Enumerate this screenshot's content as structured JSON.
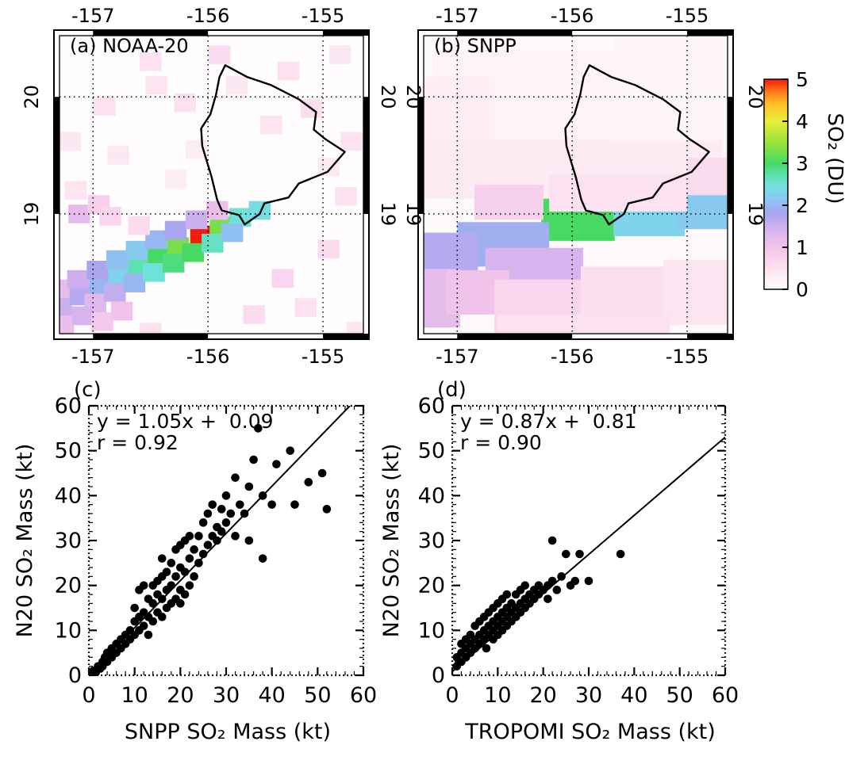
{
  "page": {
    "background": "#ffffff"
  },
  "colorbar": {
    "title": "SO₂ (DU)",
    "min": 0,
    "max": 5,
    "ticks": [
      0,
      1,
      2,
      3,
      4,
      5
    ],
    "stops": [
      [
        0.0,
        "#ffffff"
      ],
      [
        0.3,
        "#fdeef4"
      ],
      [
        0.6,
        "#fbdcee"
      ],
      [
        1.0,
        "#f2c3ea"
      ],
      [
        1.4,
        "#d8b4ee"
      ],
      [
        1.8,
        "#a9a5ef"
      ],
      [
        2.15,
        "#8cc5f1"
      ],
      [
        2.45,
        "#72e2e2"
      ],
      [
        2.75,
        "#5ce0a8"
      ],
      [
        3.0,
        "#47d963"
      ],
      [
        3.5,
        "#9ae23b"
      ],
      [
        4.0,
        "#e9ee38"
      ],
      [
        4.4,
        "#ffc22a"
      ],
      [
        4.7,
        "#ff7a18"
      ],
      [
        5.0,
        "#f71b0e"
      ]
    ]
  },
  "panels": {
    "a": {
      "label": "(a) NOAA-20"
    },
    "b": {
      "label": "(b) SNPP"
    },
    "c": {
      "label": "(c)",
      "fit_text": "y = 1.05x +  0.09",
      "r_text": "r = 0.92",
      "xlabel": "SNPP SO₂ Mass (kt)",
      "ylabel": "N20 SO₂ Mass (kt)"
    },
    "d": {
      "label": "(d)",
      "fit_text": "y = 0.87x +  0.81",
      "r_text": "r = 0.90",
      "xlabel": "TROPOMI SO₂ Mass (kt)",
      "ylabel": "N20 SO₂ Mass (kt)"
    }
  },
  "island_outline": [
    [
      -155.85,
      20.27
    ],
    [
      -155.66,
      20.17
    ],
    [
      -155.45,
      20.1
    ],
    [
      -155.21,
      19.98
    ],
    [
      -155.06,
      19.87
    ],
    [
      -155.08,
      19.72
    ],
    [
      -154.98,
      19.64
    ],
    [
      -154.81,
      19.53
    ],
    [
      -154.96,
      19.36
    ],
    [
      -155.21,
      19.26
    ],
    [
      -155.3,
      19.14
    ],
    [
      -155.51,
      19.09
    ],
    [
      -155.55,
      19.0
    ],
    [
      -155.68,
      18.91
    ],
    [
      -155.73,
      18.99
    ],
    [
      -155.88,
      19.03
    ],
    [
      -155.92,
      19.12
    ],
    [
      -155.97,
      19.32
    ],
    [
      -156.05,
      19.58
    ],
    [
      -156.06,
      19.73
    ],
    [
      -155.98,
      19.85
    ],
    [
      -155.93,
      20.02
    ],
    [
      -155.9,
      20.17
    ],
    [
      -155.85,
      20.27
    ]
  ],
  "chart_data": [
    {
      "id": "a",
      "type": "heatmap",
      "title": "(a) NOAA-20",
      "value_units": "SO₂ (DU)",
      "xlim": [
        -157.34,
        -154.6
      ],
      "ylim": [
        17.93,
        20.57
      ],
      "x_ticks": [
        -157,
        -156,
        -155
      ],
      "y_ticks": [
        19,
        20
      ],
      "frame_black_x": [
        [
          -157,
          -156
        ],
        [
          -155,
          -154.6
        ]
      ],
      "frame_black_y": [
        [
          19,
          20
        ]
      ],
      "background_value": 0.04,
      "cell_size": [
        0.19,
        0.16
      ],
      "cells": [
        [
          -157.28,
          18.21,
          1.5
        ],
        [
          -157.11,
          18.3,
          1.7
        ],
        [
          -156.94,
          18.38,
          2.0
        ],
        [
          -156.77,
          18.47,
          2.3
        ],
        [
          -156.6,
          18.55,
          2.7
        ],
        [
          -156.43,
          18.64,
          3.0
        ],
        [
          -156.26,
          18.72,
          3.3
        ],
        [
          -156.06,
          18.82,
          5.0
        ],
        [
          -155.89,
          18.9,
          3.3
        ],
        [
          -155.72,
          18.97,
          2.5
        ],
        [
          -155.55,
          19.03,
          2.4
        ],
        [
          -157.3,
          18.36,
          1.2
        ],
        [
          -157.13,
          18.44,
          1.5
        ],
        [
          -156.96,
          18.52,
          1.8
        ],
        [
          -156.79,
          18.61,
          2.1
        ],
        [
          -156.62,
          18.69,
          2.2
        ],
        [
          -156.45,
          18.78,
          2.0
        ],
        [
          -156.28,
          18.86,
          1.8
        ],
        [
          -156.1,
          18.95,
          1.5
        ],
        [
          -155.92,
          19.03,
          1.1
        ],
        [
          -156.98,
          18.24,
          1.3
        ],
        [
          -156.81,
          18.33,
          1.6
        ],
        [
          -156.64,
          18.41,
          2.0
        ],
        [
          -156.47,
          18.5,
          2.5
        ],
        [
          -156.3,
          18.58,
          2.9
        ],
        [
          -156.13,
          18.67,
          3.0
        ],
        [
          -155.96,
          18.75,
          2.6
        ],
        [
          -155.79,
          18.84,
          2.1
        ],
        [
          -157.26,
          18.05,
          1.1
        ],
        [
          -157.09,
          18.13,
          1.4
        ],
        [
          -156.92,
          18.08,
          0.9
        ],
        [
          -156.75,
          18.17,
          1.0
        ],
        [
          -157.12,
          19.0,
          1.2
        ],
        [
          -156.95,
          19.08,
          0.8
        ],
        [
          -156.85,
          18.98,
          0.7
        ],
        [
          -156.6,
          18.9,
          0.6
        ],
        [
          -156.5,
          20.3,
          0.5
        ],
        [
          -155.9,
          20.36,
          0.6
        ],
        [
          -155.3,
          20.22,
          0.5
        ],
        [
          -154.85,
          20.36,
          0.4
        ],
        [
          -156.9,
          19.92,
          0.5
        ],
        [
          -155.1,
          19.9,
          0.55
        ],
        [
          -154.75,
          19.62,
          0.5
        ],
        [
          -156.78,
          19.5,
          0.4
        ],
        [
          -157.15,
          19.2,
          0.45
        ],
        [
          -154.8,
          19.15,
          0.5
        ],
        [
          -154.95,
          18.7,
          0.6
        ],
        [
          -155.35,
          18.45,
          0.7
        ],
        [
          -155.15,
          18.2,
          0.5
        ],
        [
          -155.6,
          18.14,
          0.6
        ],
        [
          -156.5,
          17.99,
          0.5
        ],
        [
          -154.7,
          18.0,
          0.4
        ],
        [
          -157.2,
          19.62,
          0.4
        ],
        [
          -155.45,
          19.76,
          0.45
        ],
        [
          -156.28,
          19.3,
          0.3
        ],
        [
          -154.95,
          19.4,
          0.35
        ],
        [
          -156.1,
          19.55,
          0.3
        ],
        [
          -156.45,
          20.1,
          0.45
        ],
        [
          -156.2,
          19.95,
          0.5
        ],
        [
          -155.75,
          20.1,
          0.4
        ]
      ]
    },
    {
      "id": "b",
      "type": "heatmap",
      "title": "(b) SNPP",
      "value_units": "SO₂ (DU)",
      "xlim": [
        -157.34,
        -154.6
      ],
      "ylim": [
        17.93,
        20.57
      ],
      "x_ticks": [
        -157,
        -156,
        -155
      ],
      "y_ticks": [
        19,
        20
      ],
      "frame_black_x": [
        [
          -157,
          -156
        ],
        [
          -155,
          -154.6
        ]
      ],
      "frame_black_y": [
        [
          19,
          20
        ]
      ],
      "background_value": 0.08,
      "cell_size": [
        0.5,
        0.4
      ],
      "cells": [
        [
          -156.3,
          19.9,
          1.8,
          1.0,
          0.22
        ],
        [
          -155.0,
          19.95,
          1.3,
          1.1,
          0.18
        ],
        [
          -157.05,
          19.75,
          0.75,
          0.85,
          0.28
        ],
        [
          -156.0,
          19.38,
          2.6,
          0.5,
          0.35
        ],
        [
          -155.95,
          18.95,
          0.64,
          0.36,
          3.0
        ],
        [
          -155.33,
          18.98,
          0.62,
          0.34,
          2.3
        ],
        [
          -154.82,
          19.03,
          0.55,
          0.32,
          2.2
        ],
        [
          -156.6,
          18.74,
          0.8,
          0.38,
          1.9
        ],
        [
          -157.12,
          18.63,
          0.6,
          0.42,
          1.7
        ],
        [
          -156.33,
          18.55,
          0.85,
          0.32,
          1.4
        ],
        [
          -157.25,
          18.28,
          0.55,
          0.5,
          1.2
        ],
        [
          -156.82,
          18.33,
          0.55,
          0.38,
          1.0
        ],
        [
          -156.2,
          18.2,
          0.95,
          0.48,
          0.7
        ],
        [
          -155.5,
          18.3,
          0.85,
          0.5,
          0.55
        ],
        [
          -154.88,
          18.33,
          0.65,
          0.55,
          0.45
        ],
        [
          -155.9,
          17.99,
          1.5,
          0.3,
          0.5
        ],
        [
          -154.72,
          19.32,
          0.55,
          0.32,
          0.6
        ],
        [
          -155.6,
          19.18,
          1.2,
          0.32,
          0.5
        ],
        [
          -156.55,
          19.1,
          0.6,
          0.3,
          0.8
        ]
      ]
    },
    {
      "id": "c",
      "type": "scatter",
      "xlabel": "SNPP SO₂ Mass (kt)",
      "ylabel": "N20 SO₂ Mass (kt)",
      "xlim": [
        0,
        60
      ],
      "ylim": [
        0,
        60
      ],
      "x_ticks": [
        0,
        10,
        20,
        30,
        40,
        50,
        60
      ],
      "y_ticks": [
        0,
        10,
        20,
        30,
        40,
        50,
        60
      ],
      "minor_step": 2,
      "fit": {
        "slope": 1.05,
        "intercept": 0.09,
        "r": 0.92
      },
      "points": [
        [
          1,
          1
        ],
        [
          1.5,
          0.6
        ],
        [
          2,
          2
        ],
        [
          2.5,
          1.5
        ],
        [
          3,
          3
        ],
        [
          3,
          2
        ],
        [
          3.5,
          4
        ],
        [
          4,
          3
        ],
        [
          4,
          5
        ],
        [
          5,
          4
        ],
        [
          5,
          6
        ],
        [
          5.5,
          5
        ],
        [
          6,
          5
        ],
        [
          6,
          7
        ],
        [
          7,
          6
        ],
        [
          7,
          8
        ],
        [
          8,
          7
        ],
        [
          8,
          9
        ],
        [
          9,
          8
        ],
        [
          9,
          10
        ],
        [
          10,
          9
        ],
        [
          10,
          12
        ],
        [
          10,
          15
        ],
        [
          11,
          10
        ],
        [
          11,
          13
        ],
        [
          11,
          19
        ],
        [
          12,
          11
        ],
        [
          12,
          14
        ],
        [
          12,
          20
        ],
        [
          13,
          9
        ],
        [
          13,
          13
        ],
        [
          13,
          17
        ],
        [
          14,
          12
        ],
        [
          14,
          16
        ],
        [
          14,
          20
        ],
        [
          15,
          14
        ],
        [
          15,
          18
        ],
        [
          15,
          21
        ],
        [
          16,
          13
        ],
        [
          16,
          17
        ],
        [
          16,
          22
        ],
        [
          16,
          26
        ],
        [
          17,
          15
        ],
        [
          17,
          19
        ],
        [
          17,
          23
        ],
        [
          18,
          16
        ],
        [
          18,
          20
        ],
        [
          18,
          25
        ],
        [
          19,
          17
        ],
        [
          19,
          22
        ],
        [
          19,
          28
        ],
        [
          20,
          16
        ],
        [
          20,
          19
        ],
        [
          20,
          24
        ],
        [
          20,
          29
        ],
        [
          21,
          18
        ],
        [
          21,
          23
        ],
        [
          21,
          30
        ],
        [
          22,
          20
        ],
        [
          22,
          26
        ],
        [
          22,
          31
        ],
        [
          23,
          22
        ],
        [
          23,
          28
        ],
        [
          24,
          25
        ],
        [
          24,
          31
        ],
        [
          25,
          27
        ],
        [
          25,
          34
        ],
        [
          26,
          29
        ],
        [
          26,
          36
        ],
        [
          27,
          31
        ],
        [
          27,
          38
        ],
        [
          28,
          30
        ],
        [
          28,
          33
        ],
        [
          29,
          32
        ],
        [
          29,
          37
        ],
        [
          30,
          34
        ],
        [
          30,
          40
        ],
        [
          31,
          36
        ],
        [
          32,
          31
        ],
        [
          32,
          44
        ],
        [
          33,
          38
        ],
        [
          34,
          36
        ],
        [
          35,
          30
        ],
        [
          35,
          42
        ],
        [
          36,
          48
        ],
        [
          37,
          55
        ],
        [
          38,
          40
        ],
        [
          38,
          26
        ],
        [
          40,
          38
        ],
        [
          41,
          47
        ],
        [
          44,
          50
        ],
        [
          45,
          38
        ],
        [
          48,
          43
        ],
        [
          51,
          45
        ],
        [
          52,
          37
        ]
      ]
    },
    {
      "id": "d",
      "type": "scatter",
      "xlabel": "TROPOMI SO₂ Mass (kt)",
      "ylabel": "N20 SO₂ Mass (kt)",
      "xlim": [
        0,
        60
      ],
      "ylim": [
        0,
        60
      ],
      "x_ticks": [
        0,
        10,
        20,
        30,
        40,
        50,
        60
      ],
      "y_ticks": [
        0,
        10,
        20,
        30,
        40,
        50,
        60
      ],
      "minor_step": 2,
      "fit": {
        "slope": 0.87,
        "intercept": 0.81,
        "r": 0.9
      },
      "points": [
        [
          1,
          2
        ],
        [
          1,
          4
        ],
        [
          1.5,
          3
        ],
        [
          2,
          3
        ],
        [
          2,
          5
        ],
        [
          2,
          7
        ],
        [
          3,
          4
        ],
        [
          3,
          6
        ],
        [
          3,
          8
        ],
        [
          4,
          5
        ],
        [
          4,
          7
        ],
        [
          4,
          9
        ],
        [
          5,
          6
        ],
        [
          5,
          8
        ],
        [
          5,
          11
        ],
        [
          6,
          7
        ],
        [
          6,
          9
        ],
        [
          6,
          12
        ],
        [
          7,
          8
        ],
        [
          7,
          10
        ],
        [
          7,
          13
        ],
        [
          7.5,
          6
        ],
        [
          8,
          9
        ],
        [
          8,
          11
        ],
        [
          8,
          14
        ],
        [
          9,
          8
        ],
        [
          9,
          10
        ],
        [
          9,
          12
        ],
        [
          9,
          15
        ],
        [
          10,
          9
        ],
        [
          10,
          11
        ],
        [
          10,
          13
        ],
        [
          10,
          16
        ],
        [
          11,
          10
        ],
        [
          11,
          12
        ],
        [
          11,
          14
        ],
        [
          11,
          17
        ],
        [
          12,
          11
        ],
        [
          12,
          13
        ],
        [
          12,
          15
        ],
        [
          12,
          18
        ],
        [
          13,
          12
        ],
        [
          13,
          14
        ],
        [
          13,
          16
        ],
        [
          14,
          13
        ],
        [
          14,
          15
        ],
        [
          14,
          18
        ],
        [
          15,
          14
        ],
        [
          15,
          16
        ],
        [
          15,
          19
        ],
        [
          16,
          15
        ],
        [
          16,
          17
        ],
        [
          16,
          20
        ],
        [
          17,
          16
        ],
        [
          17,
          18
        ],
        [
          18,
          17
        ],
        [
          18,
          19
        ],
        [
          19,
          18
        ],
        [
          19,
          20
        ],
        [
          20,
          19
        ],
        [
          21,
          17
        ],
        [
          21,
          20
        ],
        [
          22,
          21
        ],
        [
          22,
          30
        ],
        [
          23,
          19
        ],
        [
          24,
          22
        ],
        [
          25,
          27
        ],
        [
          26,
          20
        ],
        [
          27,
          21
        ],
        [
          28,
          27
        ],
        [
          30,
          21
        ],
        [
          37,
          27
        ]
      ]
    }
  ]
}
